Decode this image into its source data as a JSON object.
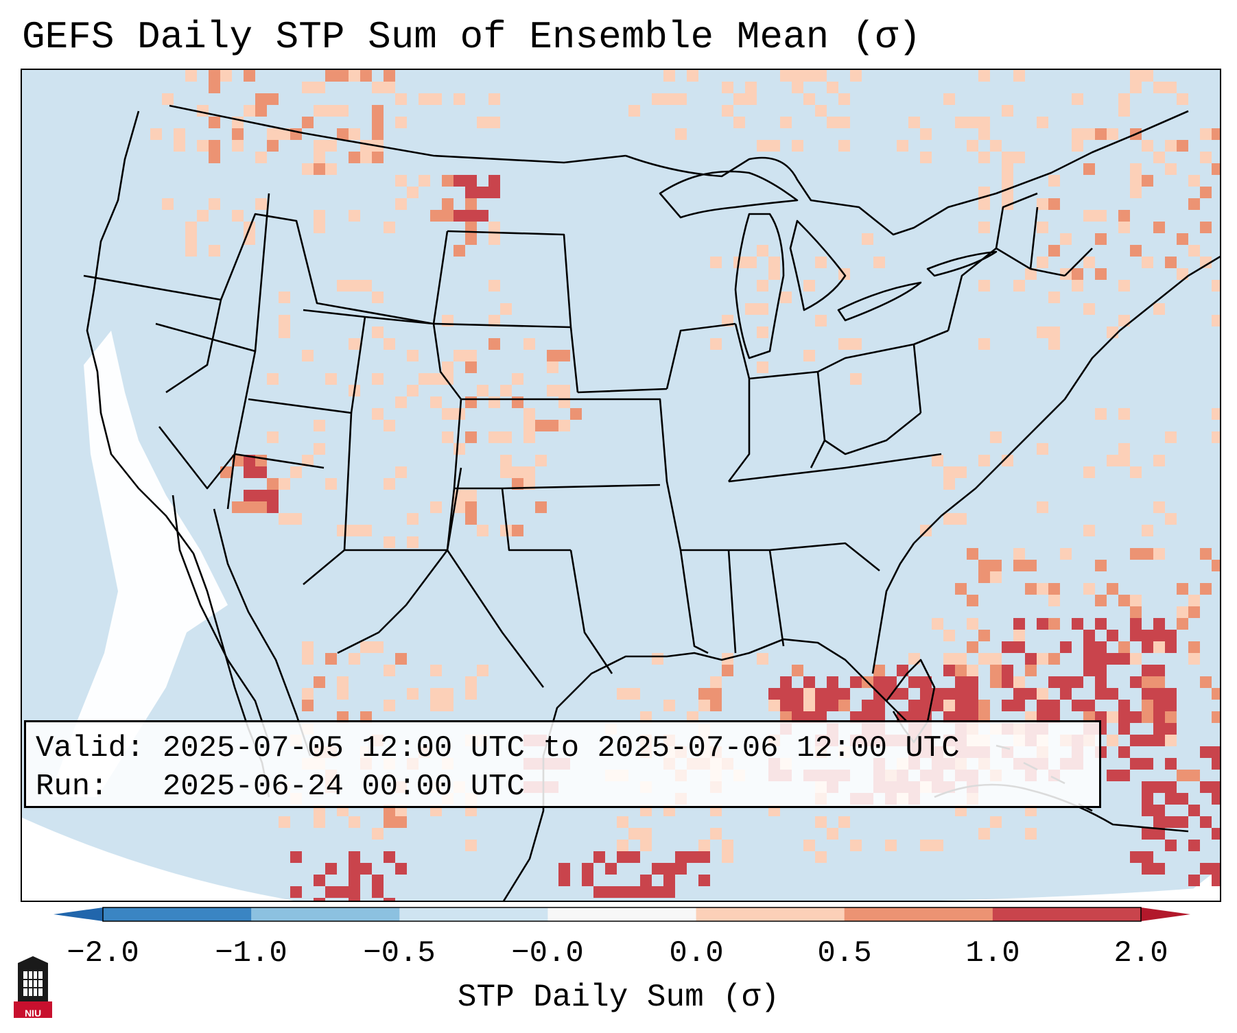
{
  "title": "GEFS Daily STP Sum of Ensemble Mean (σ)",
  "info_box": {
    "valid_line": "Valid: 2025-07-05 12:00 UTC to 2025-07-06 12:00 UTC",
    "run_line": "Run:   2025-06-24 00:00 UTC"
  },
  "colorbar": {
    "label": "STP Daily Sum (σ)",
    "ticks": [
      "−2.0",
      "−1.0",
      "−0.5",
      "−0.0",
      "0.0",
      "0.5",
      "1.0",
      "2.0"
    ],
    "colors": [
      "#3a85c3",
      "#8cc1e0",
      "#cfe4f1",
      "#f7f7f7",
      "#fcd0b8",
      "#ec9373",
      "#c9444c"
    ],
    "extend_low_color": "#2166ac",
    "extend_high_color": "#b2182b"
  },
  "map": {
    "background_ocean_color": "#cfe3f0",
    "outside_projection_color": "#ffffff",
    "boundary_color": "#000000",
    "anomaly_bins": {
      "light_positive": "#fcd0b8",
      "moderate_positive": "#ec9373",
      "strong_positive": "#c9444c",
      "extreme_positive": "#b2182b",
      "near_zero": "#f7f7f7",
      "slight_negative": "#8cc1e0"
    }
  },
  "logo": {
    "text": "NIU"
  }
}
